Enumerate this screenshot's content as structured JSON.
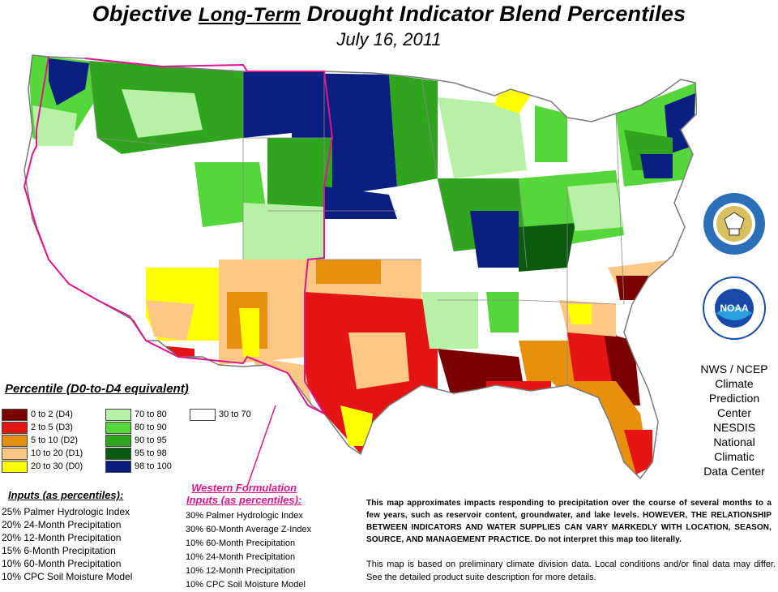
{
  "title": {
    "part1": "Objective ",
    "part2": "Long-Term",
    "part3": " Drought Indicator Blend Percentiles",
    "date": "July 16, 2011"
  },
  "legend": {
    "title": "Percentile  (D0-to-D4 equivalent)",
    "items": [
      {
        "label": "0 to 2  (D4)",
        "color": "#7a0000"
      },
      {
        "label": "2 to 5  (D3)",
        "color": "#e41414"
      },
      {
        "label": "5 to 10  (D2)",
        "color": "#e8900e"
      },
      {
        "label": "10 to 20  (D1)",
        "color": "#fdc886"
      },
      {
        "label": "20 to 30  (D0)",
        "color": "#ffff00"
      },
      {
        "label": "70 to 80",
        "color": "#b7f1a6"
      },
      {
        "label": "80 to 90",
        "color": "#55d63a"
      },
      {
        "label": "90 to 95",
        "color": "#2ea51c"
      },
      {
        "label": "95 to 98",
        "color": "#0c5a10"
      },
      {
        "label": "98 to 100",
        "color": "#0a1e80"
      },
      {
        "label": "30 to 70",
        "color": "#ffffff"
      }
    ]
  },
  "inputs": {
    "title": "Inputs (as percentiles):",
    "items": [
      "25%  Palmer Hydrologic Index",
      "20%  24-Month Precipitation",
      "20%  12-Month Precipitation",
      "15%  6-Month Precipitation",
      "10%  60-Month Precipitation",
      "10%  CPC Soil Moisture Model"
    ]
  },
  "western": {
    "title_line1": "Western Formulation",
    "title_line2": "Inputs (as percentiles):",
    "items": [
      "30% Palmer Hydrologic Index",
      "30% 60-Month Average Z-Index",
      "10% 60-Month Precipitation",
      "10% 24-Month Precipitation",
      "10% 12-Month Precipitation",
      "10% CPC Soil Moisture Model"
    ]
  },
  "notes": {
    "main": "This map approximates impacts responding to precipitation over the course of several months to a few years, such as reservoir content, groundwater, and lake levels. HOWEVER, THE RELATIONSHIP BETWEEN INDICATORS AND WATER SUPPLIES CAN VARY MARKEDLY WITH LOCATION, SEASON, SOURCE, AND MANAGEMENT PRACTICE. Do not interpret this map too literally.",
    "secondary": "This map is based on preliminary climate division data. Local conditions and/or final data may differ. See the detailed product suite description for more details."
  },
  "credits": {
    "nws": [
      "NWS / NCEP",
      "Climate",
      "Prediction",
      "Center"
    ],
    "nesdis": [
      "NESDIS",
      "National",
      "Climatic",
      "Data Center"
    ],
    "doc_seal_text": "DEPARTMENT OF COMMERCE",
    "noaa_seal_text": "NOAA"
  },
  "colors": {
    "western_boundary": "#e0148c",
    "state_border": "#7a7a7a",
    "land_neutral": "#ffffff"
  }
}
